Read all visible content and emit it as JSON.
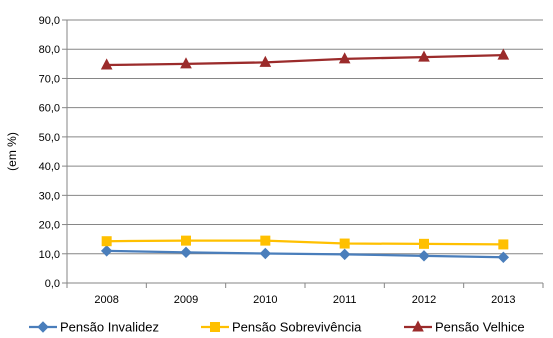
{
  "chart_data": {
    "type": "line",
    "title": "",
    "xlabel": "",
    "ylabel": "(em %)",
    "categories": [
      "2008",
      "2009",
      "2010",
      "2011",
      "2012",
      "2013"
    ],
    "ylim": [
      0,
      90
    ],
    "yticks": [
      "0,0",
      "10,0",
      "20,0",
      "30,0",
      "40,0",
      "50,0",
      "60,0",
      "70,0",
      "80,0",
      "90,0"
    ],
    "grid": true,
    "legend_position": "bottom",
    "series": [
      {
        "name": "Pensão Invalidez",
        "values": [
          11.0,
          10.5,
          10.1,
          9.8,
          9.3,
          8.8
        ],
        "color": "#4a7ebb",
        "marker": "diamond"
      },
      {
        "name": "Pensão Sobrevivência",
        "values": [
          14.3,
          14.5,
          14.5,
          13.5,
          13.4,
          13.2
        ],
        "color": "#ffc000",
        "marker": "square"
      },
      {
        "name": "Pensão Velhice",
        "values": [
          74.6,
          75.0,
          75.5,
          76.7,
          77.3,
          78.0
        ],
        "color": "#9b2b2b",
        "marker": "triangle"
      }
    ]
  }
}
